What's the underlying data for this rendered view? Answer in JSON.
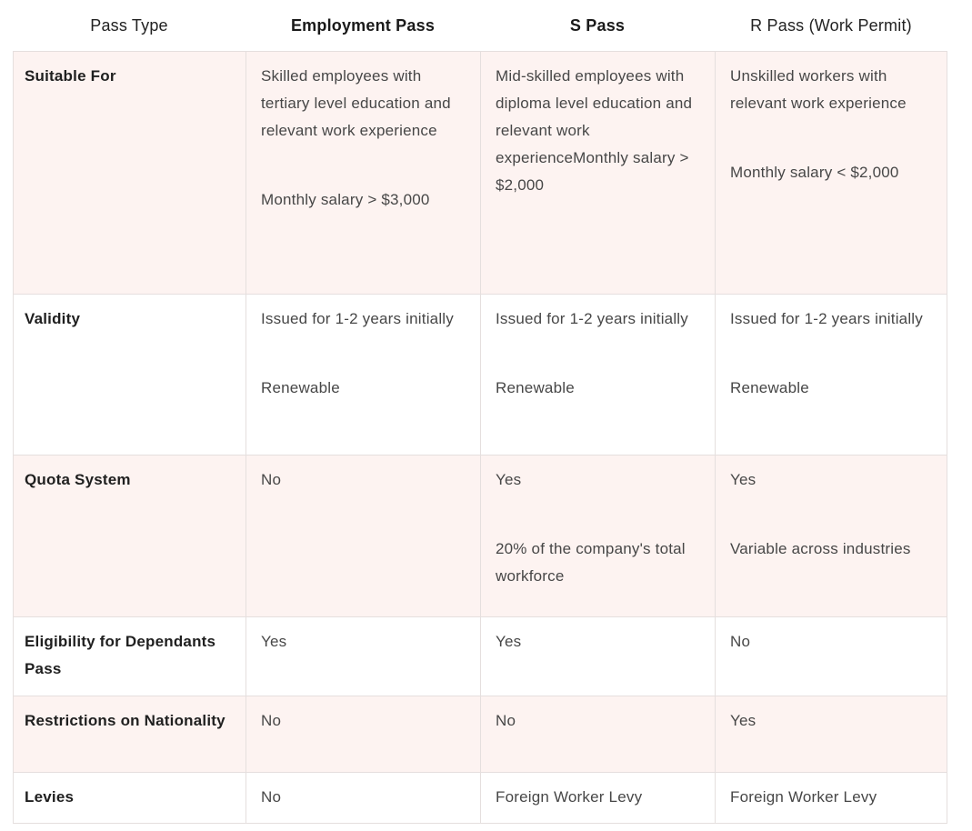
{
  "colors": {
    "row_stripe": "#fdf3f1",
    "row_plain": "#ffffff",
    "border": "#e5dfde",
    "header_text": "#222222",
    "label_text": "#1f1f1f",
    "body_text": "#474747"
  },
  "table": {
    "header": {
      "columns": [
        {
          "label": "Pass Type"
        },
        {
          "label": "Employment Pass"
        },
        {
          "label": "S Pass"
        },
        {
          "label": "R Pass (Work Permit)"
        }
      ]
    },
    "rows": [
      {
        "label": "Suitable For",
        "cells": [
          [
            "Skilled employees with tertiary level education and relevant work experience",
            "Monthly salary > $3,000"
          ],
          [
            "Mid-skilled employees with diploma level education and relevant work experienceMonthly salary > $2,000"
          ],
          [
            "Unskilled workers with relevant work experience",
            "Monthly salary < $2,000"
          ]
        ]
      },
      {
        "label": "Validity",
        "cells": [
          [
            "Issued for 1-2 years initially",
            "Renewable"
          ],
          [
            "Issued for 1-2 years initially",
            "Renewable"
          ],
          [
            "Issued for 1-2 years initially",
            "Renewable"
          ]
        ]
      },
      {
        "label": "Quota System",
        "cells": [
          [
            "No"
          ],
          [
            "Yes",
            "20% of the company's total workforce"
          ],
          [
            "Yes",
            "Variable across industries"
          ]
        ]
      },
      {
        "label": "Eligibility for Dependants Pass",
        "cells": [
          [
            "Yes"
          ],
          [
            "Yes"
          ],
          [
            "No"
          ]
        ]
      },
      {
        "label": "Restrictions on Nationality",
        "cells": [
          [
            "No"
          ],
          [
            "No"
          ],
          [
            "Yes"
          ]
        ]
      },
      {
        "label": "Levies",
        "cells": [
          [
            "No"
          ],
          [
            "Foreign Worker Levy"
          ],
          [
            "Foreign Worker Levy"
          ]
        ]
      }
    ]
  }
}
